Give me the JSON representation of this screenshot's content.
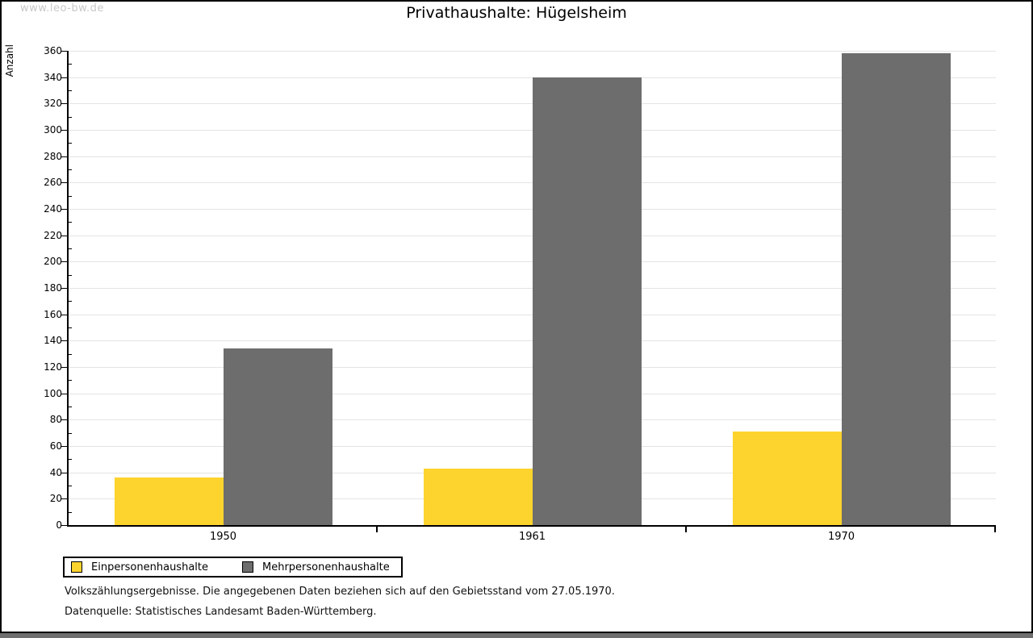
{
  "watermark": "www.leo-bw.de",
  "title": "Privathaushalte: Hügelsheim",
  "chart_data": {
    "type": "bar",
    "title": "Privathaushalte: Hügelsheim",
    "xlabel": "",
    "ylabel": "Anzahl",
    "categories": [
      "1950",
      "1961",
      "1970"
    ],
    "series": [
      {
        "name": "Einpersonenhaushalte",
        "color": "#fdd32e",
        "values": [
          36,
          43,
          71
        ]
      },
      {
        "name": "Mehrpersonenhaushalte",
        "color": "#6d6d6d",
        "values": [
          134,
          340,
          358
        ]
      }
    ],
    "ylim": [
      0,
      360
    ],
    "ytick_step": 20,
    "yminor_step": 10,
    "grid": true,
    "legend_position": "bottom-left"
  },
  "footnotes": [
    "Volkszählungsergebnisse. Die angegebenen Daten beziehen sich auf den Gebietsstand vom 27.05.1970.",
    "Datenquelle: Statistisches Landesamt Baden-Württemberg."
  ],
  "colors": {
    "bar_yellow": "#fdd32e",
    "bar_gray": "#6d6d6d",
    "gridline": "#e4e4e4",
    "axis": "#000000",
    "watermark": "#c8c8c8",
    "page_border": "#000000",
    "bottom_strip": "#6e6e6e"
  }
}
